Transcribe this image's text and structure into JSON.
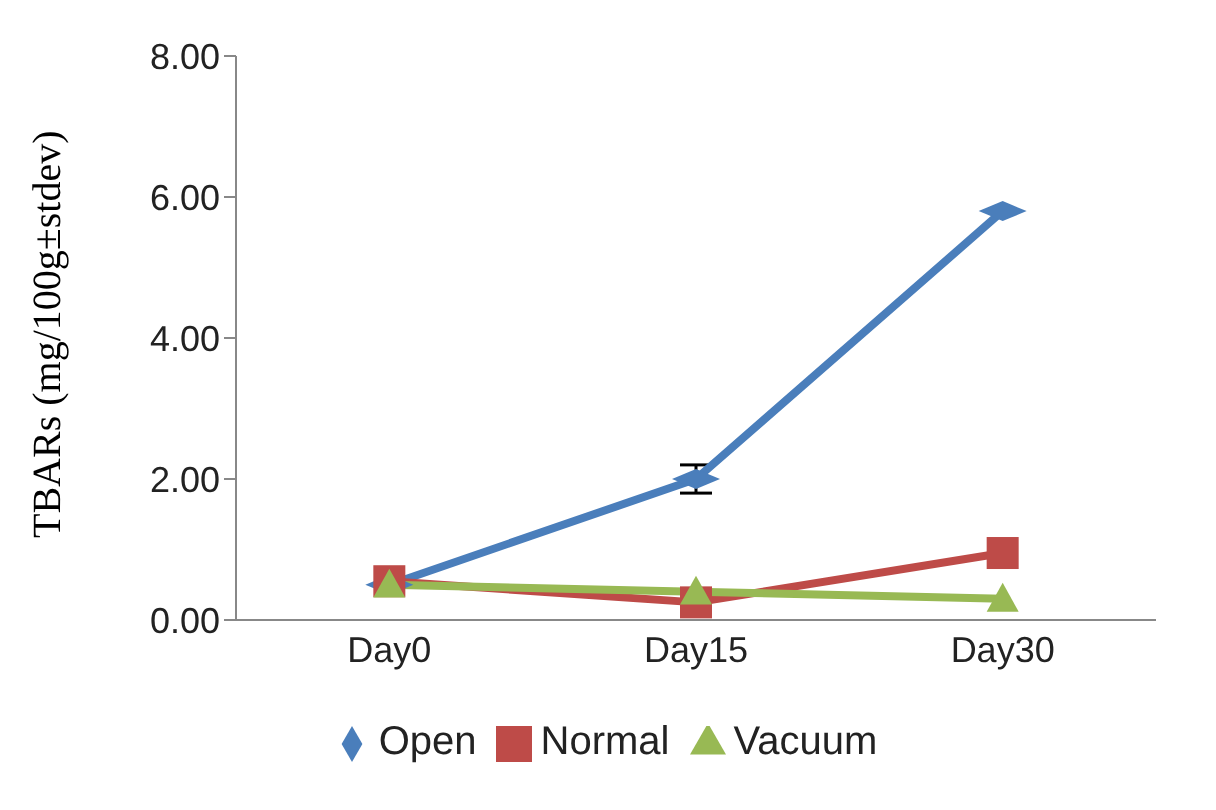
{
  "chart_data": {
    "type": "line",
    "ylabel": "TBARs (mg/100g±stdev)",
    "categories": [
      "Day0",
      "Day15",
      "Day30"
    ],
    "series": [
      {
        "name": "Open",
        "color": "#4a7ebb",
        "marker": "diamond",
        "values": [
          0.5,
          2.0,
          5.8
        ],
        "errors": [
          null,
          0.2,
          null
        ]
      },
      {
        "name": "Normal",
        "color": "#be4b48",
        "marker": "square",
        "values": [
          0.55,
          0.25,
          0.95
        ]
      },
      {
        "name": "Vacuum",
        "color": "#98b954",
        "marker": "triangle",
        "values": [
          0.5,
          0.4,
          0.3
        ]
      }
    ],
    "ylim": [
      0,
      8
    ],
    "yticks": [
      {
        "value": 0,
        "label": "0.00"
      },
      {
        "value": 2,
        "label": "2.00"
      },
      {
        "value": 4,
        "label": "4.00"
      },
      {
        "value": 6,
        "label": "6.00"
      },
      {
        "value": 8,
        "label": "8.00"
      }
    ],
    "grid": false,
    "legend": "bottom"
  }
}
